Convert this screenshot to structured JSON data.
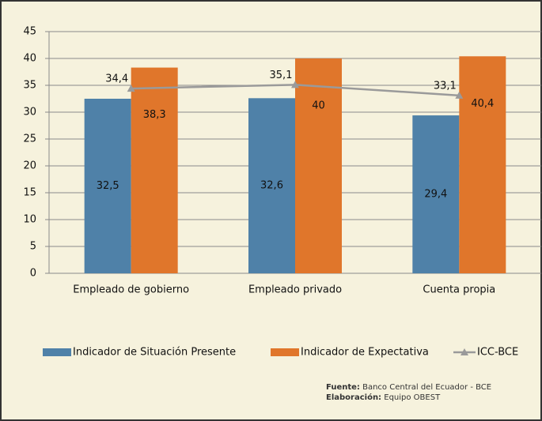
{
  "chart_data": {
    "type": "bar",
    "categories": [
      "Empleado de gobierno",
      "Empleado privado",
      "Cuenta propia"
    ],
    "series": [
      {
        "name": "Indicador de Situación Presente",
        "color": "#4f81a8",
        "values": [
          32.5,
          32.6,
          29.4
        ],
        "value_labels": [
          "32,5",
          "32,6",
          "29,4"
        ]
      },
      {
        "name": "Indicador de Expectativa",
        "color": "#e0762b",
        "values": [
          38.3,
          40,
          40.4
        ],
        "value_labels": [
          "38,3",
          "40",
          "40,4"
        ]
      },
      {
        "name": "ICC-BCE",
        "type": "line",
        "color": "#9a9a9a",
        "values": [
          34.4,
          35.1,
          33.1
        ],
        "value_labels": [
          "34,4",
          "35,1",
          "33,1"
        ]
      }
    ],
    "ylim": [
      0,
      45
    ],
    "yticks": [
      0,
      5,
      10,
      15,
      20,
      25,
      30,
      35,
      40,
      45
    ],
    "grid": true,
    "source": {
      "label": "Fuente:",
      "text": "Banco Central del Ecuador - BCE"
    },
    "credit": {
      "label": "Elaboración:",
      "text": "Equipo OBEST"
    }
  }
}
